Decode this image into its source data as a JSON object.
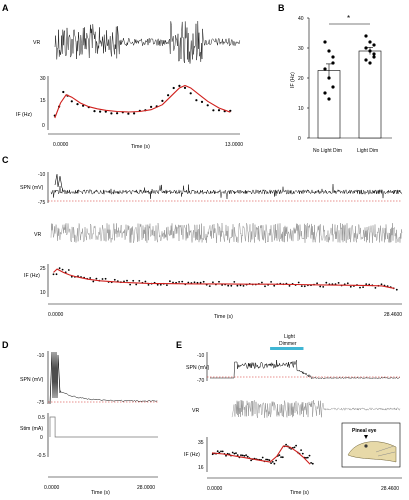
{
  "panels": [
    {
      "id": "A",
      "letter": "A"
    },
    {
      "id": "B",
      "letter": "B"
    },
    {
      "id": "C",
      "letter": "C"
    },
    {
      "id": "D",
      "letter": "D"
    },
    {
      "id": "E",
      "letter": "E"
    }
  ],
  "colors": {
    "trace": "#000000",
    "vr_trace": "#8a8a8a",
    "fit": "#d0201d",
    "baseline": "#d0201d",
    "stim": "#777777",
    "light": "#3fb6d4",
    "bar": "#ffffff"
  },
  "chart_data": [
    {
      "panel": "A",
      "type": "line",
      "rows": [
        "VR",
        "IF (Hz)"
      ],
      "xlabel": "Time (s)",
      "xtick_labels": [
        "0.0000",
        "13.0000"
      ],
      "if_ytick_labels": [
        "0",
        "15",
        "30"
      ],
      "if_ylim": [
        0,
        30
      ],
      "xlim": [
        0,
        13
      ],
      "if_points": {
        "x": [
          0.2,
          0.5,
          0.8,
          1.1,
          1.4,
          1.8,
          2.2,
          2.6,
          3.0,
          3.4,
          3.8,
          4.2,
          4.6,
          5.0,
          5.4,
          5.8,
          6.2,
          6.6,
          7.0,
          7.4,
          7.8,
          8.2,
          8.6,
          9.0,
          9.4,
          9.8,
          10.2,
          10.6,
          11.0,
          11.4,
          11.8,
          12.2,
          12.6
        ],
        "y": [
          7,
          12,
          21,
          20,
          16,
          14,
          12.5,
          11.8,
          11,
          10.4,
          10,
          9.6,
          9.4,
          9.8,
          9.2,
          9.6,
          10.5,
          11,
          12,
          13.5,
          16,
          20,
          24,
          26,
          24,
          20,
          17,
          15,
          13,
          11.5,
          10.5,
          10,
          9.5
        ]
      },
      "if_fit": {
        "x": [
          0.2,
          0.6,
          1.0,
          1.4,
          2.0,
          2.6,
          3.2,
          3.8,
          4.6,
          5.4,
          6.2,
          7.0,
          7.8,
          8.4,
          9.0,
          9.4,
          9.8,
          10.4,
          11.0,
          11.8,
          12.6
        ],
        "y": [
          6,
          15,
          20,
          18.5,
          15,
          12.8,
          11.5,
          10.6,
          9.9,
          9.6,
          9.9,
          11,
          14,
          19,
          24,
          25.5,
          24,
          20,
          16,
          12,
          9.5
        ]
      }
    },
    {
      "panel": "B",
      "type": "bar",
      "categories": [
        "No Light Dim",
        "Light Dim"
      ],
      "values": [
        22.5,
        29
      ],
      "errors": [
        2.2,
        1.2
      ],
      "ylabel": "IF (Hz)",
      "ylim": [
        0,
        40
      ],
      "ytick_labels": [
        "0",
        "10",
        "20",
        "30",
        "40"
      ],
      "significance": "*",
      "points": [
        [
          32,
          29,
          27,
          23,
          20,
          17,
          15,
          13,
          25
        ],
        [
          34,
          32,
          31,
          30,
          29,
          27,
          26,
          25,
          28
        ]
      ]
    },
    {
      "panel": "C",
      "type": "line",
      "rows": [
        "SPN (mV)",
        "VR",
        "IF (Hz)"
      ],
      "xlabel": "Time (s)",
      "xtick_labels": [
        "0.0000",
        "28.4600"
      ],
      "spn_ytick_labels": [
        "-10",
        "-75"
      ],
      "if_ytick_labels": [
        "25",
        "10"
      ],
      "spn_ylim": [
        -75,
        -10
      ],
      "if_ylim": [
        8,
        27
      ],
      "xlim": [
        0,
        28.46
      ],
      "if_fit": {
        "x": [
          0.2,
          0.5,
          1,
          1.5,
          2,
          3,
          4,
          5,
          6,
          8,
          10,
          12,
          14,
          16,
          18,
          20,
          22,
          24,
          26,
          27,
          28
        ],
        "y": [
          22,
          24,
          22,
          20.5,
          19.5,
          18,
          17,
          16.5,
          16,
          15.5,
          15.3,
          15.2,
          15.2,
          15,
          15,
          14.8,
          14.6,
          14.4,
          14.2,
          14,
          12.5
        ]
      }
    },
    {
      "panel": "D",
      "type": "line",
      "rows": [
        "SPN (mV)",
        "Stim (mA)"
      ],
      "xlabel": "Time (s)",
      "xtick_labels": [
        "0.0000",
        "28.0000"
      ],
      "spn_ytick_labels": [
        "-10",
        "-75"
      ],
      "stim_ytick_labels": [
        "0.5",
        "0",
        "-0.5"
      ],
      "spn_ylim": [
        -75,
        -10
      ],
      "stim_ylim": [
        -0.5,
        0.5
      ],
      "xlim": [
        0,
        28
      ],
      "stim_pulse": {
        "start": 0,
        "end": 0.8,
        "amplitude": 0.5
      }
    },
    {
      "panel": "E",
      "type": "line",
      "rows": [
        "SPN (mV)",
        "VR",
        "IF (Hz)"
      ],
      "xlabel": "Time (s)",
      "xtick_labels": [
        "0.0000",
        "28.4600"
      ],
      "spn_ytick_labels": [
        "-10",
        "-70"
      ],
      "if_ytick_labels": [
        "35",
        "16"
      ],
      "annotation": "Light Dimmer",
      "inset_label": "Pineal eye",
      "spn_ylim": [
        -70,
        -10
      ],
      "if_ylim": [
        10,
        38
      ],
      "xlim": [
        0,
        28.46
      ],
      "light_window": [
        9,
        14
      ],
      "if_fit": {
        "x": [
          0.3,
          2,
          4,
          6,
          8,
          9,
          10,
          11,
          12,
          13,
          14,
          15
        ],
        "y": [
          25,
          24,
          22,
          20,
          18,
          17,
          22,
          31,
          30,
          26,
          21,
          15
        ]
      }
    }
  ]
}
